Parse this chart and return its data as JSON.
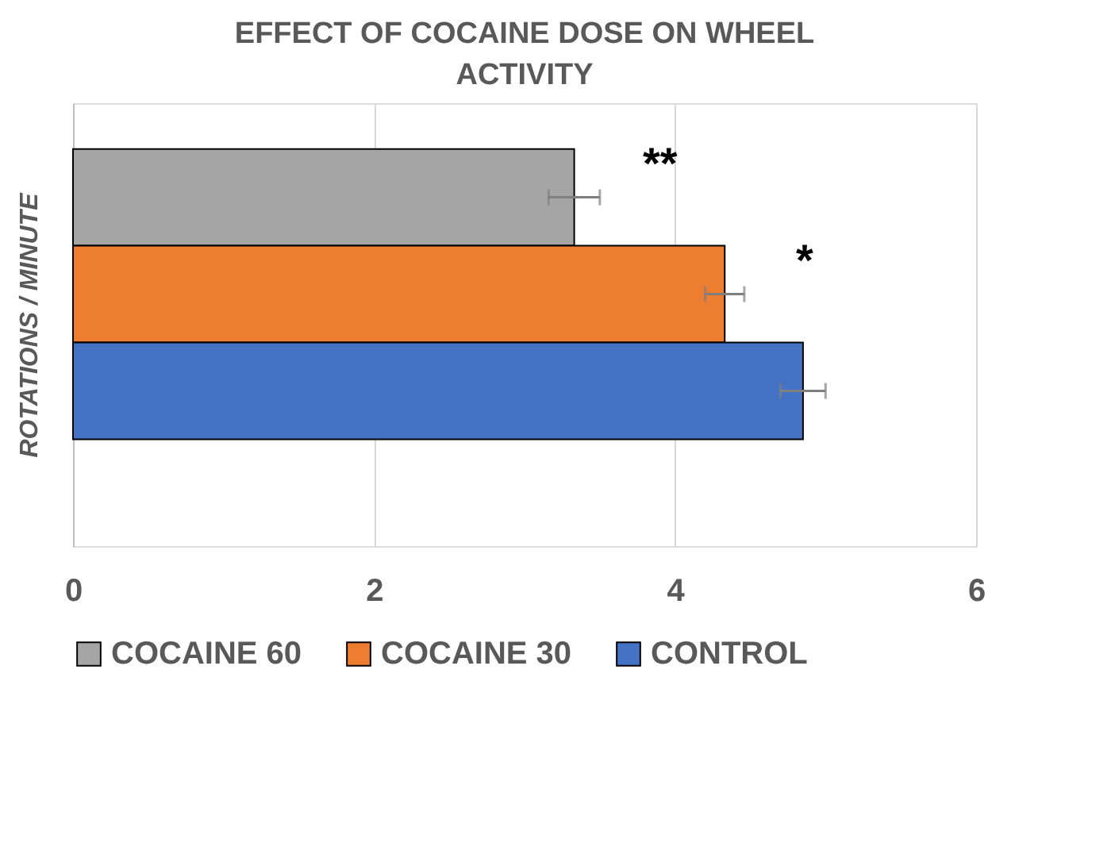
{
  "chart_data": {
    "type": "bar",
    "orientation": "horizontal",
    "title": "EFFECT OF COCAINE DOSE ON WHEEL ACTIVITY",
    "ylabel": "ROTATIONS / MINUTE",
    "categories": [
      null
    ],
    "series": [
      {
        "name": "COCAINE 60",
        "color": "#a5a5a5",
        "values": [
          3.33
        ],
        "errors": [
          0.17
        ]
      },
      {
        "name": "COCAINE 30",
        "color": "#ed7d31",
        "values": [
          4.33
        ],
        "errors": [
          0.13
        ]
      },
      {
        "name": "CONTROL",
        "color": "#4472c4",
        "values": [
          4.85
        ],
        "errors": [
          0.15
        ]
      }
    ],
    "annotations": [
      "**",
      "*"
    ],
    "xlim": [
      0,
      6
    ],
    "xticks": [
      0,
      2,
      4,
      6
    ],
    "grid": "x",
    "legend": "bottom"
  }
}
